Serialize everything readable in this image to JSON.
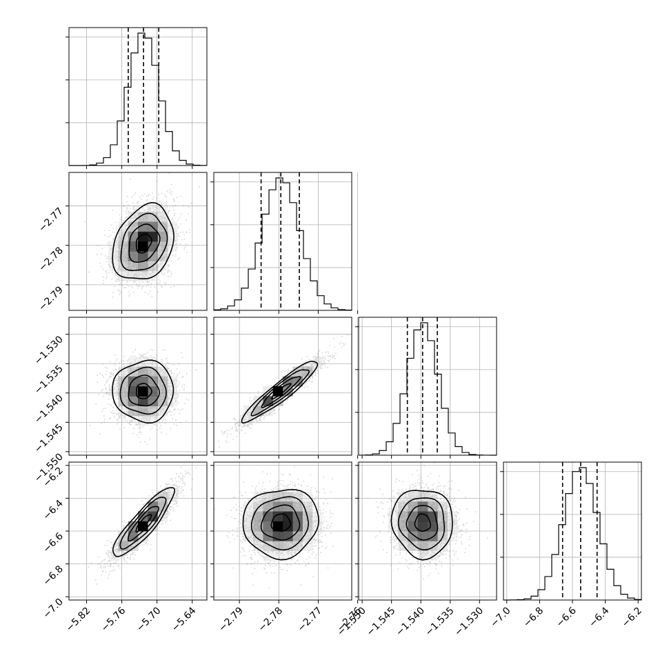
{
  "figure": {
    "type": "corner-plot"
  },
  "chart_data": {
    "type": "corner",
    "parameters": [
      {
        "key": "p0",
        "median": -5.723,
        "q16": -5.749,
        "q84": -5.697,
        "sigma": 0.026,
        "range": [
          -5.85,
          -5.615
        ],
        "ticks": [
          -5.82,
          -5.76,
          -5.7,
          -5.64
        ],
        "tick_labels": [
          "−5.82",
          "−5.76",
          "−5.70",
          "−5.64"
        ]
      },
      {
        "key": "p1",
        "median": -2.7795,
        "q16": -2.7845,
        "q84": -2.7748,
        "sigma": 0.0048,
        "range": [
          -2.7965,
          -2.7615
        ],
        "ticks": [
          -2.79,
          -2.78,
          -2.77,
          -2.76
        ],
        "tick_labels": [
          "−2.79",
          "−2.78",
          "−2.77",
          "−2.76"
        ]
      },
      {
        "key": "p2",
        "median": -1.5397,
        "q16": -1.5423,
        "q84": -1.5372,
        "sigma": 0.0026,
        "range": [
          -1.5506,
          -1.5271
        ],
        "ticks": [
          -1.55,
          -1.545,
          -1.54,
          -1.535,
          -1.53
        ],
        "tick_labels": [
          "−1.550",
          "−1.545",
          "−1.540",
          "−1.535",
          "−1.530"
        ]
      },
      {
        "key": "p3",
        "median": -6.55,
        "q16": -6.66,
        "q84": -6.45,
        "sigma": 0.105,
        "range": [
          -7.02,
          -6.18
        ],
        "ticks": [
          -7.0,
          -6.8,
          -6.6,
          -6.4,
          -6.2
        ],
        "tick_labels": [
          "−7.0",
          "−6.8",
          "−6.6",
          "−6.4",
          "−6.2"
        ]
      }
    ],
    "correlations": [
      {
        "i": 1,
        "j": 0,
        "rho": 0.25
      },
      {
        "i": 2,
        "j": 0,
        "rho": 0.0
      },
      {
        "i": 2,
        "j": 1,
        "rho": 0.93
      },
      {
        "i": 3,
        "j": 0,
        "rho": 0.88
      },
      {
        "i": 3,
        "j": 1,
        "rho": 0.05
      },
      {
        "i": 3,
        "j": 2,
        "rho": -0.05
      }
    ],
    "contour_levels_sigma": [
      0.5,
      1.0,
      1.5,
      2.0
    ],
    "grid": true,
    "colors": {
      "hist": "#000000",
      "contour": "#000000",
      "points": "#777777",
      "grid": "#b0b0b0"
    }
  }
}
